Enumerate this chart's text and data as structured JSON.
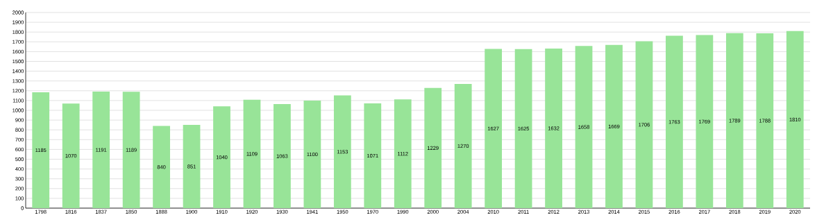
{
  "chart_data": {
    "type": "bar",
    "categories": [
      "1798",
      "1816",
      "1837",
      "1850",
      "1888",
      "1900",
      "1910",
      "1920",
      "1930",
      "1941",
      "1950",
      "1970",
      "1990",
      "2000",
      "2004",
      "2010",
      "2011",
      "2012",
      "2013",
      "2014",
      "2015",
      "2016",
      "2017",
      "2018",
      "2019",
      "2020"
    ],
    "values": [
      1185,
      1070,
      1191,
      1189,
      840,
      851,
      1040,
      1109,
      1063,
      1100,
      1153,
      1071,
      1112,
      1229,
      1270,
      1627,
      1625,
      1632,
      1658,
      1669,
      1706,
      1763,
      1769,
      1789,
      1788,
      1810
    ],
    "color": "#98e498",
    "ylim": [
      0,
      2000
    ],
    "yticks": [
      0,
      100,
      200,
      300,
      400,
      500,
      600,
      700,
      800,
      900,
      1000,
      1100,
      1200,
      1300,
      1400,
      1500,
      1600,
      1700,
      1800,
      1900,
      2000
    ],
    "grid": "y",
    "data_labels": true
  }
}
